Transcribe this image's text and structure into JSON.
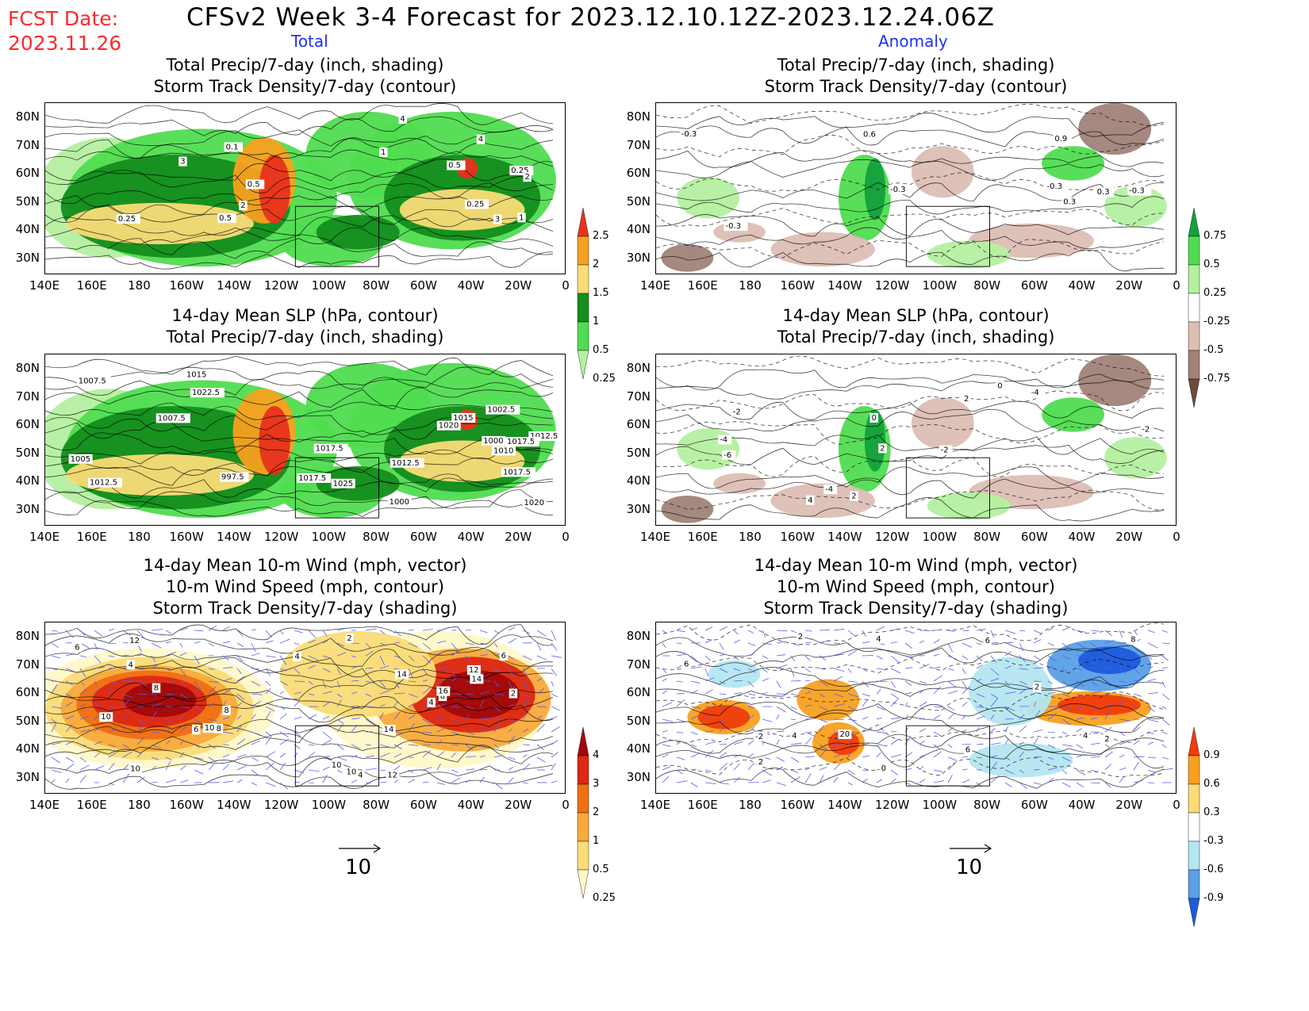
{
  "header": {
    "fcst_label": "FCST Date:",
    "fcst_date": "2023.11.26",
    "title": "CFSv2 Week 3-4 Forecast for 2023.12.10.12Z-2023.12.24.06Z",
    "col_total": "Total",
    "col_anomaly": "Anomaly"
  },
  "axes": {
    "lat_labels": [
      "80N",
      "70N",
      "60N",
      "50N",
      "40N",
      "30N"
    ],
    "lon_labels": [
      "140E",
      "160E",
      "180",
      "160W",
      "140W",
      "120W",
      "100W",
      "80W",
      "60W",
      "40W",
      "20W",
      "0"
    ]
  },
  "panels": [
    {
      "id": "p1",
      "col": "total",
      "row": 0,
      "title_lines": [
        "Total Precip/7-day (inch, shading)",
        "Storm Track Density/7-day (contour)"
      ],
      "shading": "precip"
    },
    {
      "id": "p2",
      "col": "anomaly",
      "row": 0,
      "title_lines": [
        "Total Precip/7-day (inch, shading)",
        "Storm Track Density/7-day (contour)"
      ],
      "shading": "anom_precip"
    },
    {
      "id": "p3",
      "col": "total",
      "row": 1,
      "title_lines": [
        "14-day Mean SLP (hPa, contour)",
        "Total Precip/7-day (inch, shading)"
      ],
      "shading": "precip"
    },
    {
      "id": "p4",
      "col": "anomaly",
      "row": 1,
      "title_lines": [
        "14-day Mean SLP (hPa, contour)",
        "Total Precip/7-day (inch, shading)"
      ],
      "shading": "anom_precip"
    },
    {
      "id": "p5",
      "col": "total",
      "row": 2,
      "title_lines": [
        "14-day Mean 10-m Wind (mph, vector)",
        "10-m Wind Speed (mph, contour)",
        "Storm Track Density/7-day (shading)"
      ],
      "shading": "storm"
    },
    {
      "id": "p6",
      "col": "anomaly",
      "row": 2,
      "title_lines": [
        "14-day Mean 10-m Wind (mph, vector)",
        "10-m Wind Speed (mph, contour)",
        "Storm Track Density/7-day (shading)"
      ],
      "shading": "anom_storm"
    }
  ],
  "colorbars": {
    "precip": {
      "labels": [
        "2.5",
        "2",
        "1.5",
        "1",
        "0.5",
        "0.25"
      ],
      "colors": [
        "#e8321e",
        "#f8a020",
        "#fadc78",
        "#148c1e",
        "#50dc50",
        "#b4f0a0"
      ]
    },
    "anom_precip": {
      "labels": [
        "0.75",
        "0.5",
        "0.25",
        "-0.25",
        "-0.5",
        "-0.75"
      ],
      "colors": [
        "#14a03c",
        "#50dc50",
        "#b4f0a0",
        "#ffffff",
        "#dcbeb4",
        "#a08278",
        "#6e4a3c"
      ]
    },
    "storm": {
      "labels": [
        "4",
        "3",
        "2",
        "1",
        "0.5",
        "0.25"
      ],
      "colors": [
        "#a00a0a",
        "#dc2814",
        "#f06e14",
        "#f8aa3c",
        "#fadc78",
        "#fff8c8"
      ]
    },
    "anom_storm": {
      "labels": [
        "0.9",
        "0.6",
        "0.3",
        "-0.3",
        "-0.6",
        "-0.9"
      ],
      "colors": [
        "#f03c0a",
        "#f8a020",
        "#fadc78",
        "#ffffff",
        "#b4e6f0",
        "#5aa0e6",
        "#1e5adc"
      ]
    }
  },
  "contour_labels": {
    "p1": [
      "0.1",
      "0.25",
      "1",
      "2",
      "0.5",
      "1",
      "2",
      "4",
      "3",
      "4",
      "3",
      "0.25",
      "0.5",
      "0.5",
      "0.25"
    ],
    "p2": [
      "-0.3",
      "-0.3",
      "0.3",
      "-0.3",
      "-0.3",
      "0.3",
      "-0.3",
      "0.9",
      "0.6"
    ],
    "p3": [
      "1025",
      "1022.5",
      "1020",
      "1012.5",
      "1017.5",
      "1015",
      "1007.5",
      "1002.5",
      "1000",
      "997.5",
      "1012.5",
      "1017.5",
      "1020",
      "1015",
      "1012.5",
      "1010",
      "1017.5",
      "1000",
      "1005",
      "1007.5",
      "1017.5"
    ],
    "p4": [
      "0",
      "2",
      "-2",
      "-4",
      "-6",
      "-4",
      "2",
      "-2",
      "2",
      "-2",
      "0",
      "-4",
      "4"
    ],
    "p5": [
      "8",
      "10",
      "6",
      "4",
      "14",
      "12",
      "6",
      "10",
      "14",
      "16",
      "12",
      "10",
      "4",
      "8",
      "12",
      "10",
      "10",
      "8",
      "14",
      "2",
      "6",
      "8",
      "4",
      "2",
      "4"
    ],
    "p6": [
      "2",
      "2",
      "4",
      "2",
      "4",
      "6",
      "0",
      "-2",
      "20",
      "6",
      "4",
      "8",
      "2",
      "6"
    ]
  },
  "vector_reference": {
    "label": "10"
  }
}
